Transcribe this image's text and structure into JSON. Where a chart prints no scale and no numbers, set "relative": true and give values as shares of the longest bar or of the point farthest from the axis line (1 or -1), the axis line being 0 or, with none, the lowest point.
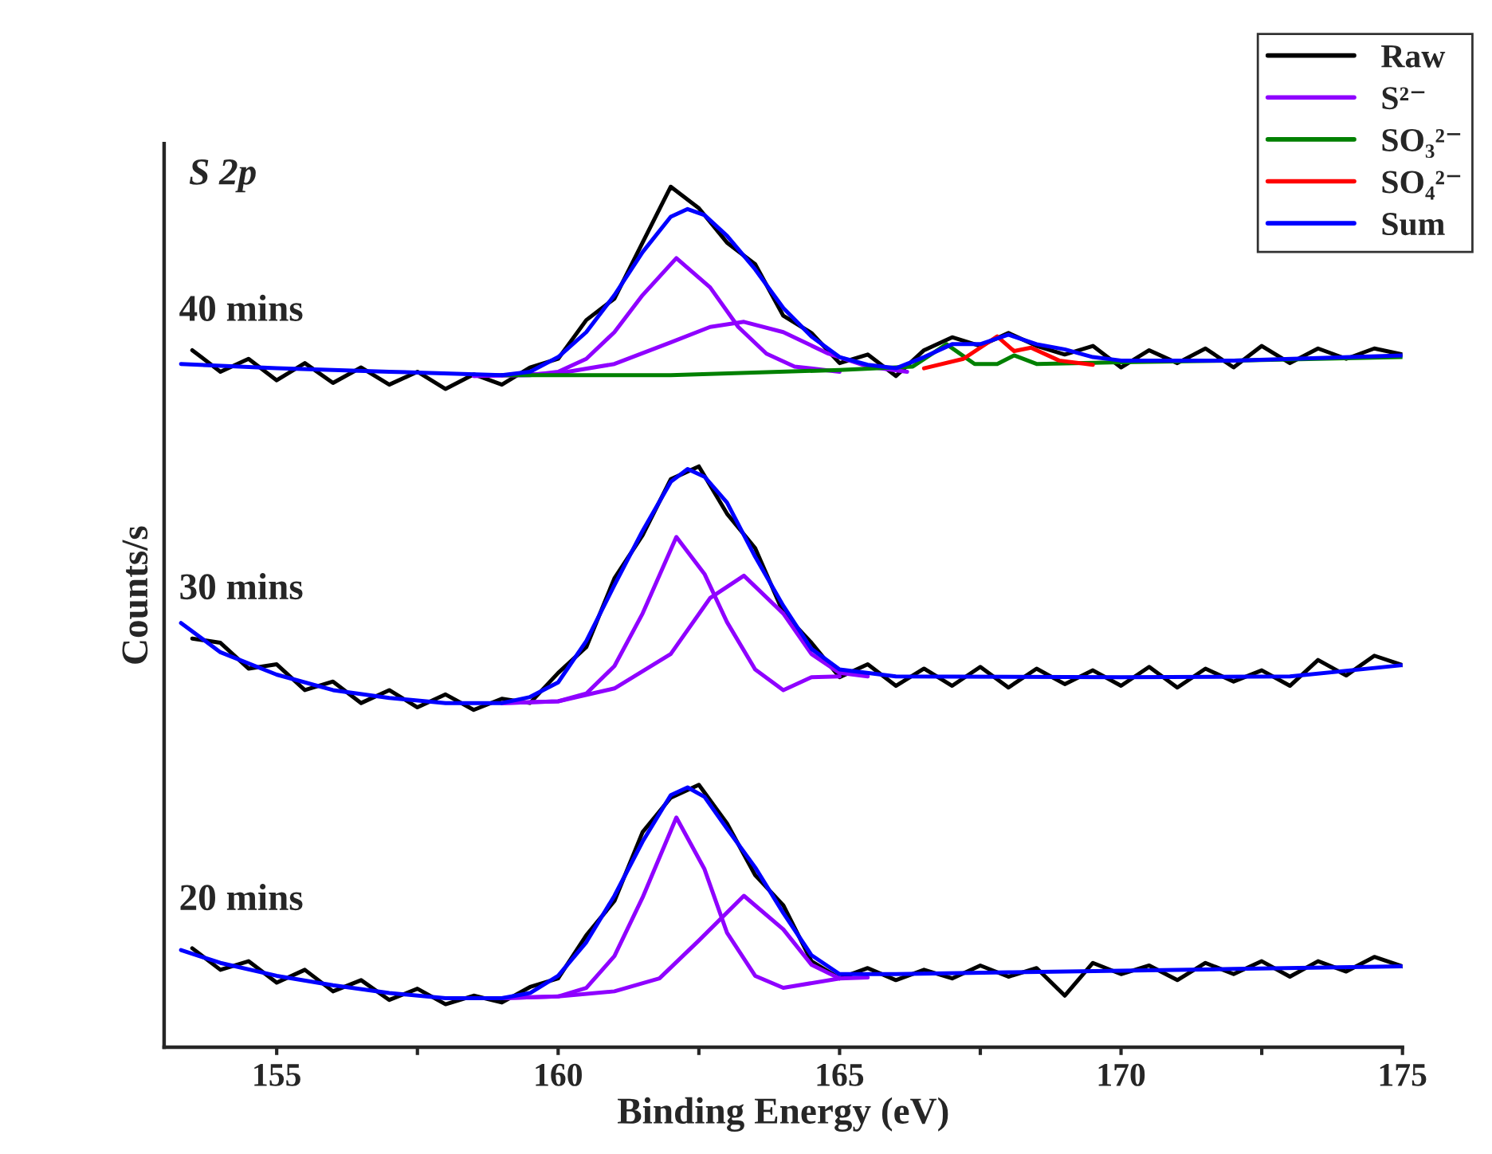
{
  "chart_data": {
    "type": "line",
    "relative": true,
    "xlabel": "Binding Energy (eV)",
    "ylabel": "Counts/s",
    "annotations": [
      "S 2p",
      "40 mins",
      "30 mins",
      "20 mins"
    ],
    "xlim": [
      153,
      175
    ],
    "xticks": [
      155,
      {
        "value": 157.5,
        "label": null
      },
      160,
      {
        "value": 162.5,
        "label": null
      },
      165,
      {
        "value": 167.5,
        "label": null
      },
      170,
      {
        "value": 172.5,
        "label": null
      },
      175
    ],
    "tick_labels": "x",
    "legend": "top right",
    "line_style": "solid",
    "marker": "none",
    "series": [
      {
        "name": "Raw",
        "color": "#000000",
        "x": [
          153.5,
          154,
          154.5,
          155,
          155.5,
          156,
          156.5,
          157,
          157.5,
          158,
          158.5,
          159,
          159.5,
          160,
          160.5,
          161,
          161.5,
          162,
          162.5,
          163,
          163.5,
          164,
          164.5,
          165,
          165.5,
          166,
          166.5,
          167,
          167.5,
          168,
          168.5,
          169,
          169.5,
          170,
          170.5,
          171,
          171.5,
          172,
          172.5,
          173,
          173.5,
          174,
          174.5,
          175
        ],
        "values": [
          0.81,
          0.785,
          0.8,
          0.775,
          0.795,
          0.772,
          0.79,
          0.77,
          0.785,
          0.765,
          0.782,
          0.77,
          0.79,
          0.8,
          0.845,
          0.87,
          0.935,
          1.0,
          0.975,
          0.935,
          0.91,
          0.85,
          0.83,
          0.795,
          0.805,
          0.78,
          0.81,
          0.825,
          0.815,
          0.83,
          0.815,
          0.805,
          0.815,
          0.79,
          0.81,
          0.795,
          0.812,
          0.79,
          0.815,
          0.795,
          0.812,
          0.8,
          0.812,
          0.805
        ]
      },
      {
        "name": "S²⁻",
        "color": "#8f00ff",
        "x": [
          158.5,
          159.5,
          160,
          160.5,
          161,
          161.5,
          162.1,
          162.7,
          163.2,
          163.7,
          164.2,
          165
        ],
        "values": [
          0.78,
          0.781,
          0.785,
          0.8,
          0.831,
          0.874,
          0.917,
          0.883,
          0.837,
          0.806,
          0.791,
          0.785
        ]
      },
      {
        "color": "#8f00ff",
        "x": [
          158.5,
          160,
          161,
          162,
          162.7,
          163.3,
          164,
          164.8,
          165.5,
          166.2
        ],
        "values": [
          0.78,
          0.783,
          0.794,
          0.819,
          0.837,
          0.843,
          0.831,
          0.806,
          0.791,
          0.785
        ]
      },
      {
        "name": "SO₃²⁻",
        "color": "#008000",
        "x": [
          159,
          162,
          165,
          166.3,
          166.9,
          167.4,
          167.8,
          168.1,
          168.5,
          170,
          172,
          175
        ],
        "values": [
          0.781,
          0.781,
          0.787,
          0.791,
          0.817,
          0.794,
          0.794,
          0.804,
          0.794,
          0.796,
          0.798,
          0.802
        ]
      },
      {
        "name": "SO₄²⁻",
        "color": "#ff0000",
        "x": [
          166.5,
          167.2,
          167.8,
          168.1,
          168.4,
          168.9,
          169.5
        ],
        "values": [
          0.789,
          0.8,
          0.826,
          0.809,
          0.813,
          0.798,
          0.793
        ]
      },
      {
        "name": "Sum",
        "color": "#0000ff",
        "x": [
          153.3,
          155,
          157,
          159,
          159.5,
          160,
          160.5,
          161,
          161.5,
          162,
          162.3,
          162.6,
          163,
          163.5,
          164,
          164.5,
          165,
          165.5,
          166,
          166.5,
          167,
          167.5,
          168,
          168.5,
          169,
          169.5,
          170,
          172,
          175
        ],
        "values": [
          0.794,
          0.789,
          0.785,
          0.781,
          0.785,
          0.802,
          0.831,
          0.874,
          0.924,
          0.965,
          0.974,
          0.967,
          0.943,
          0.904,
          0.859,
          0.826,
          0.802,
          0.793,
          0.789,
          0.802,
          0.817,
          0.817,
          0.828,
          0.817,
          0.811,
          0.802,
          0.798,
          0.798,
          0.804
        ]
      },
      {
        "color": "#000000",
        "x": [
          153.5,
          154,
          154.5,
          155,
          155.5,
          156,
          156.5,
          157,
          157.5,
          158,
          158.5,
          159,
          159.5,
          160,
          160.5,
          161,
          161.5,
          162,
          162.5,
          163,
          163.5,
          164,
          164.5,
          165,
          165.5,
          166,
          166.5,
          167,
          167.5,
          168,
          168.5,
          169,
          169.5,
          170,
          170.5,
          171,
          171.5,
          172,
          172.5,
          173,
          173.5,
          174,
          174.5,
          175
        ],
        "values": [
          0.475,
          0.47,
          0.44,
          0.445,
          0.415,
          0.425,
          0.4,
          0.415,
          0.395,
          0.41,
          0.392,
          0.405,
          0.4,
          0.435,
          0.465,
          0.545,
          0.595,
          0.66,
          0.675,
          0.62,
          0.58,
          0.505,
          0.47,
          0.43,
          0.445,
          0.42,
          0.44,
          0.42,
          0.442,
          0.418,
          0.44,
          0.422,
          0.438,
          0.42,
          0.442,
          0.418,
          0.44,
          0.425,
          0.438,
          0.42,
          0.45,
          0.432,
          0.455,
          0.444
        ]
      },
      {
        "color": "#8f00ff",
        "x": [
          159,
          160,
          160.5,
          161,
          161.5,
          162.1,
          162.6,
          163,
          163.5,
          164,
          164.5,
          165
        ],
        "values": [
          0.4,
          0.402,
          0.411,
          0.443,
          0.504,
          0.593,
          0.55,
          0.494,
          0.439,
          0.415,
          0.43,
          0.431
        ]
      },
      {
        "color": "#8f00ff",
        "x": [
          159,
          160,
          161,
          162,
          162.7,
          163.3,
          164,
          164.5,
          165,
          165.5
        ],
        "values": [
          0.4,
          0.402,
          0.417,
          0.457,
          0.522,
          0.548,
          0.504,
          0.457,
          0.435,
          0.431
        ]
      },
      {
        "color": "#0000ff",
        "x": [
          153.3,
          154,
          155,
          156,
          157,
          158,
          159,
          159.5,
          160,
          160.5,
          161,
          161.5,
          162,
          162.3,
          162.6,
          163,
          163.5,
          164,
          164.5,
          165,
          166,
          170,
          173,
          175
        ],
        "values": [
          0.493,
          0.459,
          0.433,
          0.415,
          0.406,
          0.4,
          0.4,
          0.407,
          0.424,
          0.472,
          0.537,
          0.6,
          0.657,
          0.672,
          0.663,
          0.633,
          0.57,
          0.513,
          0.463,
          0.439,
          0.431,
          0.43,
          0.431,
          0.444
        ]
      },
      {
        "color": "#000000",
        "x": [
          153.5,
          154,
          154.5,
          155,
          155.5,
          156,
          156.5,
          157,
          157.5,
          158,
          158.5,
          159,
          159.5,
          160,
          160.5,
          161,
          161.5,
          162,
          162.5,
          163,
          163.5,
          164,
          164.5,
          165,
          165.5,
          166,
          166.5,
          167,
          167.5,
          168,
          168.5,
          169,
          169.5,
          170,
          170.5,
          171,
          171.5,
          172,
          172.5,
          173,
          173.5,
          174,
          174.5,
          175
        ],
        "values": [
          0.115,
          0.09,
          0.1,
          0.075,
          0.09,
          0.065,
          0.078,
          0.055,
          0.068,
          0.05,
          0.06,
          0.052,
          0.07,
          0.08,
          0.13,
          0.17,
          0.25,
          0.29,
          0.305,
          0.26,
          0.2,
          0.165,
          0.1,
          0.08,
          0.092,
          0.078,
          0.09,
          0.08,
          0.095,
          0.082,
          0.092,
          0.06,
          0.098,
          0.085,
          0.095,
          0.078,
          0.098,
          0.085,
          0.1,
          0.082,
          0.1,
          0.088,
          0.105,
          0.094
        ]
      },
      {
        "color": "#8f00ff",
        "x": [
          159,
          160,
          160.5,
          161,
          161.5,
          162.1,
          162.6,
          163,
          163.5,
          164,
          165
        ],
        "values": [
          0.057,
          0.059,
          0.069,
          0.106,
          0.174,
          0.267,
          0.207,
          0.133,
          0.083,
          0.069,
          0.08
        ]
      },
      {
        "color": "#8f00ff",
        "x": [
          159,
          160,
          161,
          161.8,
          162.5,
          163.3,
          164,
          164.5,
          165,
          165.5
        ],
        "values": [
          0.057,
          0.059,
          0.065,
          0.08,
          0.124,
          0.176,
          0.137,
          0.096,
          0.08,
          0.081
        ]
      },
      {
        "color": "#0000ff",
        "x": [
          153.3,
          154,
          155,
          156,
          157,
          158,
          159,
          159.5,
          160,
          160.5,
          161,
          161.5,
          162,
          162.3,
          162.6,
          163,
          163.5,
          164,
          164.5,
          165,
          166,
          168,
          170,
          172,
          175
        ],
        "values": [
          0.113,
          0.098,
          0.083,
          0.072,
          0.063,
          0.057,
          0.057,
          0.063,
          0.083,
          0.122,
          0.176,
          0.239,
          0.293,
          0.302,
          0.291,
          0.254,
          0.209,
          0.156,
          0.107,
          0.085,
          0.085,
          0.087,
          0.089,
          0.091,
          0.094
        ]
      }
    ]
  }
}
